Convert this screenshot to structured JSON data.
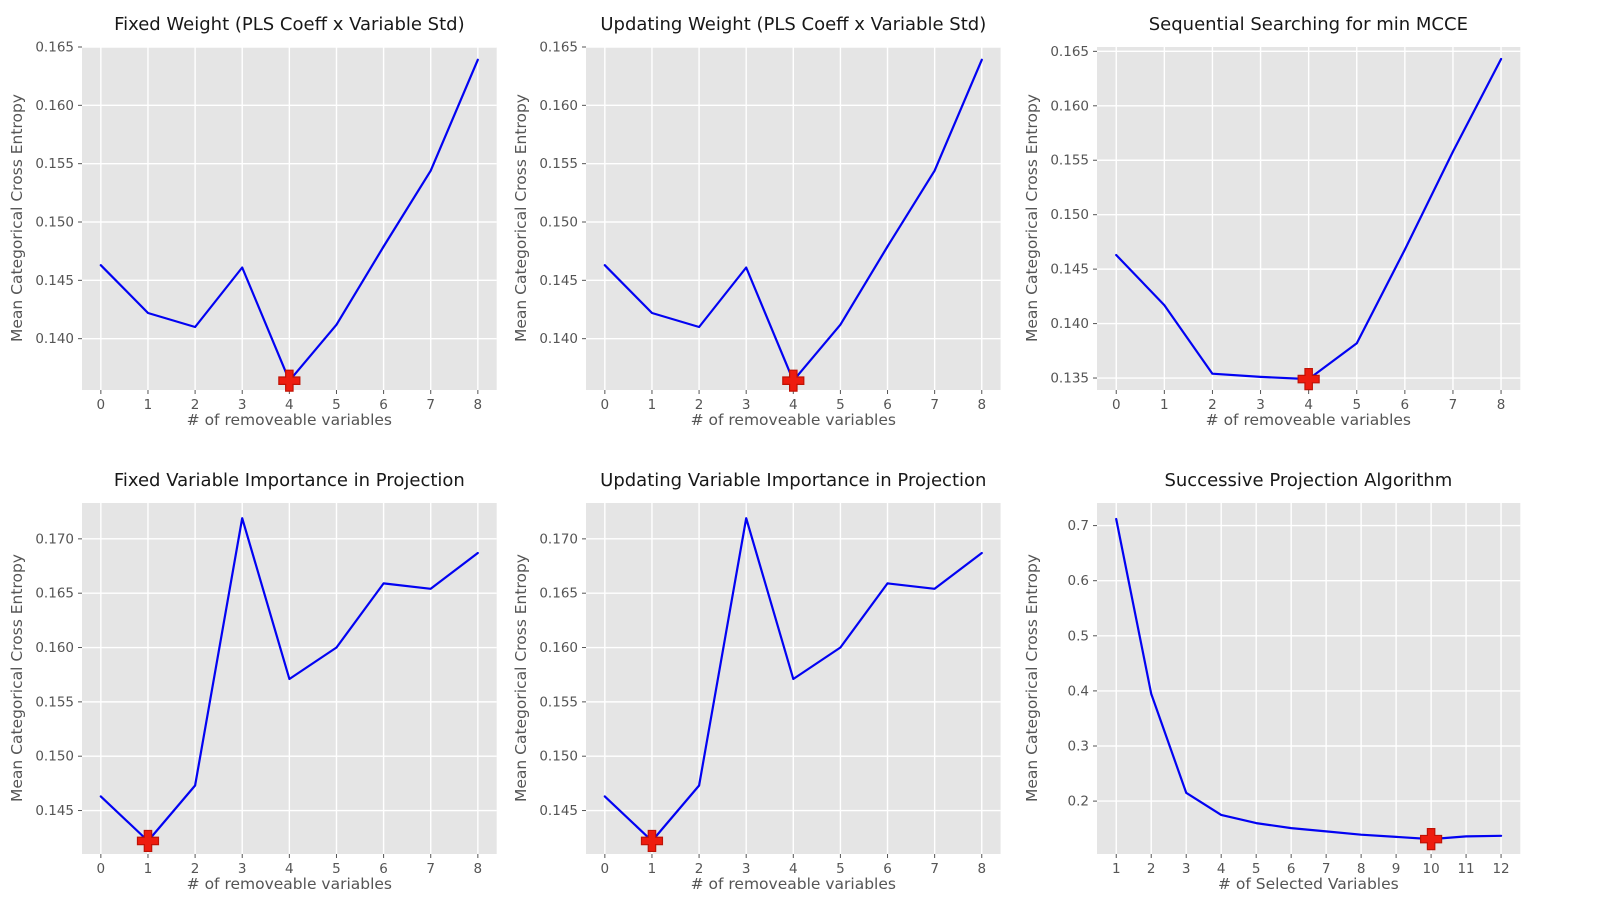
{
  "figure": {
    "background": "#ffffff",
    "plot_background": "#e5e5e5",
    "grid_color": "#ffffff",
    "line_color": "#0202f2",
    "marker_color": "#ee1c0e",
    "marker_edge_color": "#bf1205",
    "tick_color": "#555555",
    "title_color": "#181818",
    "label_color": "#555555"
  },
  "chart_data": [
    {
      "type": "line",
      "id": "fixed-weight",
      "title": "Fixed Weight (PLS Coeff x Variable Std)",
      "xlabel": "# of removeable variables",
      "ylabel": "Mean Categorical Cross Entropy",
      "x": [
        0,
        1,
        2,
        3,
        4,
        5,
        6,
        7,
        8
      ],
      "y": [
        0.1463,
        0.1422,
        0.141,
        0.1461,
        0.1364,
        0.1412,
        0.1479,
        0.1544,
        0.1639
      ],
      "min_marker": {
        "x": 4,
        "y": 0.1364
      },
      "xticks": [
        "0",
        "1",
        "2",
        "3",
        "4",
        "5",
        "6",
        "7",
        "8"
      ],
      "yticks": [
        "0.140",
        "0.145",
        "0.150",
        "0.155",
        "0.160",
        "0.165"
      ],
      "xlim": [
        -0.4,
        8.4
      ],
      "ylim": [
        0.1356,
        0.165
      ],
      "grid": true,
      "legend": false
    },
    {
      "type": "line",
      "id": "updating-weight",
      "title": "Updating Weight (PLS Coeff x Variable Std)",
      "xlabel": "# of removeable variables",
      "ylabel": "Mean Categorical Cross Entropy",
      "x": [
        0,
        1,
        2,
        3,
        4,
        5,
        6,
        7,
        8
      ],
      "y": [
        0.1463,
        0.1422,
        0.141,
        0.1461,
        0.1364,
        0.1412,
        0.1479,
        0.1544,
        0.1639
      ],
      "min_marker": {
        "x": 4,
        "y": 0.1364
      },
      "xticks": [
        "0",
        "1",
        "2",
        "3",
        "4",
        "5",
        "6",
        "7",
        "8"
      ],
      "yticks": [
        "0.140",
        "0.145",
        "0.150",
        "0.155",
        "0.160",
        "0.165"
      ],
      "xlim": [
        -0.4,
        8.4
      ],
      "ylim": [
        0.1356,
        0.165
      ],
      "grid": true,
      "legend": false
    },
    {
      "type": "line",
      "id": "sequential-search",
      "title": "Sequential Searching for min MCCE",
      "xlabel": "# of removeable variables",
      "ylabel": "Mean Categorical Cross Entropy",
      "x": [
        0,
        1,
        2,
        3,
        4,
        5,
        6,
        7,
        8
      ],
      "y": [
        0.1463,
        0.1417,
        0.1354,
        0.1351,
        0.1349,
        0.1382,
        0.1468,
        0.1558,
        0.1643
      ],
      "min_marker": {
        "x": 4,
        "y": 0.1349
      },
      "xticks": [
        "0",
        "1",
        "2",
        "3",
        "4",
        "5",
        "6",
        "7",
        "8"
      ],
      "yticks": [
        "0.135",
        "0.140",
        "0.145",
        "0.150",
        "0.155",
        "0.160",
        "0.165"
      ],
      "xlim": [
        -0.4,
        8.4
      ],
      "ylim": [
        0.1339,
        0.1654
      ],
      "grid": true,
      "legend": false
    },
    {
      "type": "line",
      "id": "fixed-vip",
      "title": "Fixed Variable Importance in Projection",
      "xlabel": "# of removeable variables",
      "ylabel": "Mean Categorical Cross Entropy",
      "x": [
        0,
        1,
        2,
        3,
        4,
        5,
        6,
        7,
        8
      ],
      "y": [
        0.1463,
        0.1422,
        0.1473,
        0.1719,
        0.1571,
        0.16,
        0.1659,
        0.1654,
        0.1687
      ],
      "min_marker": {
        "x": 1,
        "y": 0.1422
      },
      "xticks": [
        "0",
        "1",
        "2",
        "3",
        "4",
        "5",
        "6",
        "7",
        "8"
      ],
      "yticks": [
        "0.145",
        "0.150",
        "0.155",
        "0.160",
        "0.165",
        "0.170"
      ],
      "xlim": [
        -0.4,
        8.4
      ],
      "ylim": [
        0.141,
        0.1733
      ],
      "grid": true,
      "legend": false
    },
    {
      "type": "line",
      "id": "updating-vip",
      "title": "Updating Variable Importance in Projection",
      "xlabel": "# of removeable variables",
      "ylabel": "Mean Categorical Cross Entropy",
      "x": [
        0,
        1,
        2,
        3,
        4,
        5,
        6,
        7,
        8
      ],
      "y": [
        0.1463,
        0.1422,
        0.1473,
        0.1719,
        0.1571,
        0.16,
        0.1659,
        0.1654,
        0.1687
      ],
      "min_marker": {
        "x": 1,
        "y": 0.1422
      },
      "xticks": [
        "0",
        "1",
        "2",
        "3",
        "4",
        "5",
        "6",
        "7",
        "8"
      ],
      "yticks": [
        "0.145",
        "0.150",
        "0.155",
        "0.160",
        "0.165",
        "0.170"
      ],
      "xlim": [
        -0.4,
        8.4
      ],
      "ylim": [
        0.141,
        0.1733
      ],
      "grid": true,
      "legend": false
    },
    {
      "type": "line",
      "id": "spa",
      "title": "Successive Projection Algorithm",
      "xlabel": "# of Selected Variables",
      "ylabel": "Mean Categorical Cross Entropy",
      "x": [
        1,
        2,
        3,
        4,
        5,
        6,
        7,
        8,
        9,
        10,
        11,
        12
      ],
      "y": [
        0.712,
        0.395,
        0.215,
        0.175,
        0.16,
        0.151,
        0.145,
        0.139,
        0.135,
        0.131,
        0.136,
        0.137
      ],
      "min_marker": {
        "x": 10,
        "y": 0.131
      },
      "xticks": [
        "1",
        "2",
        "3",
        "4",
        "5",
        "6",
        "7",
        "8",
        "9",
        "10",
        "11",
        "12"
      ],
      "yticks": [
        "0.2",
        "0.3",
        "0.4",
        "0.5",
        "0.6",
        "0.7"
      ],
      "xlim": [
        0.45,
        12.55
      ],
      "ylim": [
        0.104,
        0.741
      ],
      "grid": true,
      "legend": false
    }
  ]
}
